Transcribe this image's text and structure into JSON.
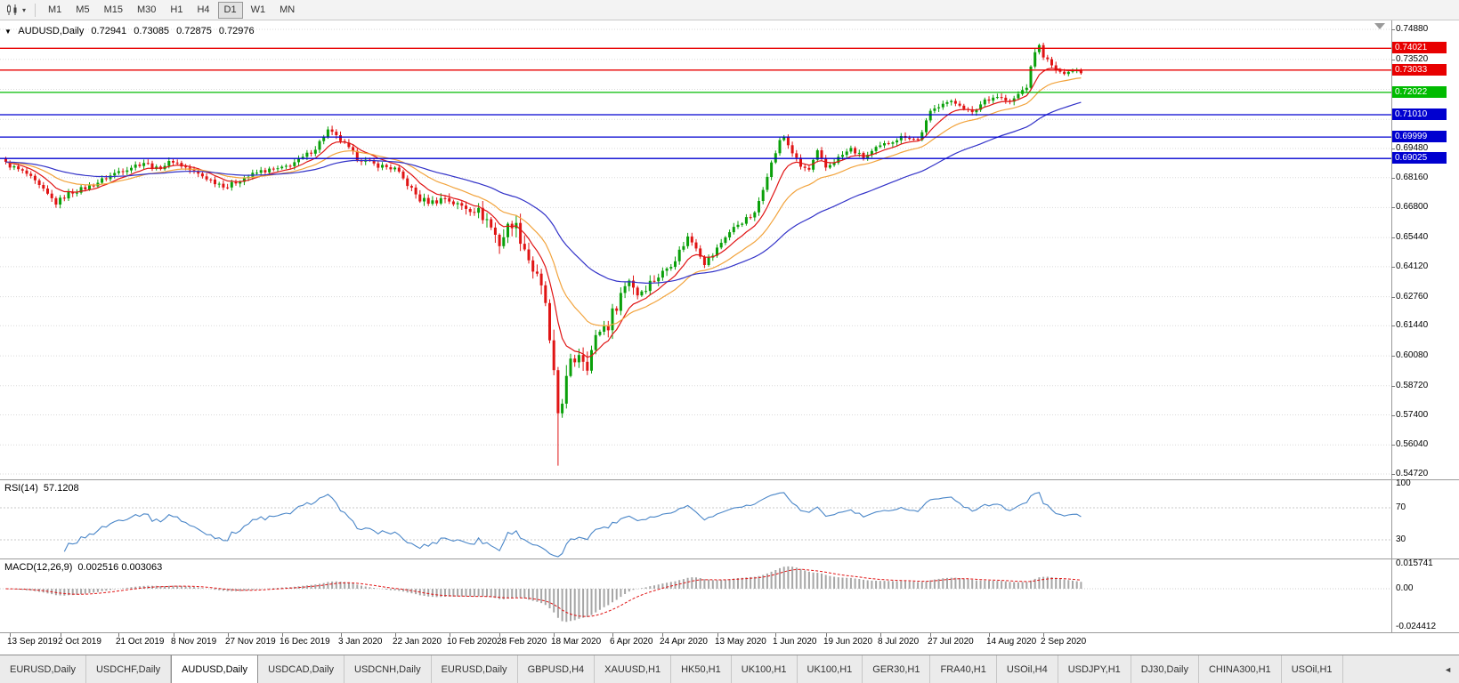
{
  "toolbar": {
    "timeframes": [
      "M1",
      "M5",
      "M15",
      "M30",
      "H1",
      "H4",
      "D1",
      "W1",
      "MN"
    ],
    "active_timeframe": "D1"
  },
  "icons": {
    "one_click": "▼",
    "dropdown_caret": "▾",
    "tab_scroll": "◄"
  },
  "chart_header": {
    "symbol_label": "AUDUSD,Daily",
    "open": "0.72941",
    "high": "0.73085",
    "low": "0.72875",
    "close": "0.72976"
  },
  "tabs": {
    "items": [
      "EURUSD,Daily",
      "USDCHF,Daily",
      "AUDUSD,Daily",
      "USDCAD,Daily",
      "USDCNH,Daily",
      "EURUSD,Daily",
      "GBPUSD,H4",
      "XAUUSD,H1",
      "HK50,H1",
      "UK100,H1",
      "UK100,H1",
      "GER30,H1",
      "FRA40,H1",
      "USOil,H4",
      "USDJPY,H1",
      "DJ30,Daily",
      "CHINA300,H1",
      "USOil,H1"
    ],
    "active_index": 2
  },
  "chart_data": {
    "type": "candlestick",
    "symbol": "AUDUSD",
    "period": "Daily",
    "n_candles": 258,
    "y_axis": {
      "max": 0.7488,
      "min": 0.5472,
      "visible_ticks": [
        "0.74880",
        "0.73520",
        "0.69480",
        "0.68160",
        "0.66800",
        "0.65440",
        "0.64120",
        "0.62760",
        "0.61440",
        "0.60080",
        "0.58720",
        "0.57400",
        "0.56040",
        "0.54720"
      ],
      "grid_values": [
        0.7488,
        0.7352,
        0.7216,
        0.708,
        0.6948,
        0.6816,
        0.668,
        0.6544,
        0.6412,
        0.6276,
        0.6144,
        0.6008,
        0.5872,
        0.574,
        0.5604,
        0.5472
      ]
    },
    "x_labels": [
      {
        "text": "13 Sep 2019",
        "i": 1
      },
      {
        "text": "2 Oct 2019",
        "i": 13
      },
      {
        "text": "21 Oct 2019",
        "i": 27
      },
      {
        "text": "8 Nov 2019",
        "i": 40
      },
      {
        "text": "27 Nov 2019",
        "i": 53
      },
      {
        "text": "16 Dec 2019",
        "i": 66
      },
      {
        "text": "3 Jan 2020",
        "i": 80
      },
      {
        "text": "22 Jan 2020",
        "i": 93
      },
      {
        "text": "10 Feb 2020",
        "i": 106
      },
      {
        "text": "28 Feb 2020",
        "i": 118
      },
      {
        "text": "18 Mar 2020",
        "i": 131
      },
      {
        "text": "6 Apr 2020",
        "i": 145
      },
      {
        "text": "24 Apr 2020",
        "i": 157
      },
      {
        "text": "13 May 2020",
        "i": 170
      },
      {
        "text": "1 Jun 2020",
        "i": 184
      },
      {
        "text": "19 Jun 2020",
        "i": 196
      },
      {
        "text": "8 Jul 2020",
        "i": 209
      },
      {
        "text": "27 Jul 2020",
        "i": 221
      },
      {
        "text": "14 Aug 2020",
        "i": 235
      },
      {
        "text": "2 Sep 2020",
        "i": 248
      }
    ],
    "price_keyframes": [
      [
        0,
        0.688
      ],
      [
        5,
        0.6832
      ],
      [
        12,
        0.67
      ],
      [
        15,
        0.6745
      ],
      [
        20,
        0.6775
      ],
      [
        27,
        0.6845
      ],
      [
        33,
        0.6885
      ],
      [
        36,
        0.6855
      ],
      [
        40,
        0.6892
      ],
      [
        45,
        0.684
      ],
      [
        50,
        0.6796
      ],
      [
        53,
        0.6775
      ],
      [
        56,
        0.6806
      ],
      [
        61,
        0.6845
      ],
      [
        66,
        0.6856
      ],
      [
        71,
        0.6905
      ],
      [
        74,
        0.695
      ],
      [
        77,
        0.703
      ],
      [
        80,
        0.6985
      ],
      [
        84,
        0.6906
      ],
      [
        88,
        0.6876
      ],
      [
        93,
        0.6855
      ],
      [
        96,
        0.6786
      ],
      [
        99,
        0.6715
      ],
      [
        102,
        0.6705
      ],
      [
        105,
        0.6726
      ],
      [
        108,
        0.669
      ],
      [
        112,
        0.6676
      ],
      [
        115,
        0.6625
      ],
      [
        118,
        0.652
      ],
      [
        121,
        0.662
      ],
      [
        123,
        0.655
      ],
      [
        126,
        0.64
      ],
      [
        129,
        0.625
      ],
      [
        130,
        0.605
      ],
      [
        131,
        0.59
      ],
      [
        132,
        0.575
      ],
      [
        133,
        0.582
      ],
      [
        135,
        0.596
      ],
      [
        137,
        0.603
      ],
      [
        139,
        0.598
      ],
      [
        142,
        0.613
      ],
      [
        144,
        0.615
      ],
      [
        147,
        0.629
      ],
      [
        149,
        0.636
      ],
      [
        151,
        0.629
      ],
      [
        154,
        0.634
      ],
      [
        157,
        0.6385
      ],
      [
        160,
        0.645
      ],
      [
        163,
        0.6545
      ],
      [
        165,
        0.6505
      ],
      [
        167,
        0.643
      ],
      [
        169,
        0.6465
      ],
      [
        172,
        0.655
      ],
      [
        175,
        0.6605
      ],
      [
        179,
        0.665
      ],
      [
        182,
        0.683
      ],
      [
        185,
        0.698
      ],
      [
        186,
        0.7
      ],
      [
        188,
        0.693
      ],
      [
        190,
        0.6865
      ],
      [
        192,
        0.685
      ],
      [
        194,
        0.693
      ],
      [
        196,
        0.686
      ],
      [
        199,
        0.6905
      ],
      [
        202,
        0.6945
      ],
      [
        205,
        0.6905
      ],
      [
        208,
        0.6945
      ],
      [
        212,
        0.6985
      ],
      [
        215,
        0.7005
      ],
      [
        218,
        0.6985
      ],
      [
        221,
        0.711
      ],
      [
        224,
        0.716
      ],
      [
        228,
        0.715
      ],
      [
        231,
        0.7105
      ],
      [
        234,
        0.717
      ],
      [
        237,
        0.7185
      ],
      [
        240,
        0.7155
      ],
      [
        244,
        0.723
      ],
      [
        246,
        0.739
      ],
      [
        247,
        0.741
      ],
      [
        248,
        0.737
      ],
      [
        250,
        0.732
      ],
      [
        252,
        0.7285
      ],
      [
        254,
        0.7305
      ],
      [
        257,
        0.7298
      ]
    ],
    "crash": {
      "index": 132,
      "low": 0.551
    },
    "candle_colors": {
      "up": "#0aa00a",
      "down": "#e01414"
    },
    "levels": [
      {
        "value": 0.74021,
        "text": "0.74021",
        "color": "#e80000"
      },
      {
        "value": 0.73033,
        "text": "0.73033",
        "color": "#e80000"
      },
      {
        "value": 0.72022,
        "text": "0.72022",
        "color": "#00bb00"
      },
      {
        "value": 0.7101,
        "text": "0.71010",
        "color": "#0000d0"
      },
      {
        "value": 0.69999,
        "text": "0.69999",
        "color": "#0000d0"
      },
      {
        "value": 0.69025,
        "text": "0.69025",
        "color": "#0000d0"
      }
    ],
    "moving_averages": [
      {
        "period": 9,
        "color": "#e01414"
      },
      {
        "period": 21,
        "color": "#f2a33c"
      },
      {
        "period": 50,
        "color": "#3232c8"
      }
    ],
    "indicators": {
      "rsi": {
        "label": "RSI(14)",
        "value": "57.1208",
        "color": "#4a86c8",
        "levels": [
          70,
          30
        ],
        "axis_labels": [
          "100",
          "70",
          "30"
        ]
      },
      "macd": {
        "label": "MACD(12,26,9)",
        "values": "0.002516 0.003063",
        "axis_labels": [
          "0.015741",
          "0.00",
          "-0.024412"
        ],
        "histogram_color": "#a6a6a6",
        "signal_color": "#e01414"
      }
    }
  }
}
